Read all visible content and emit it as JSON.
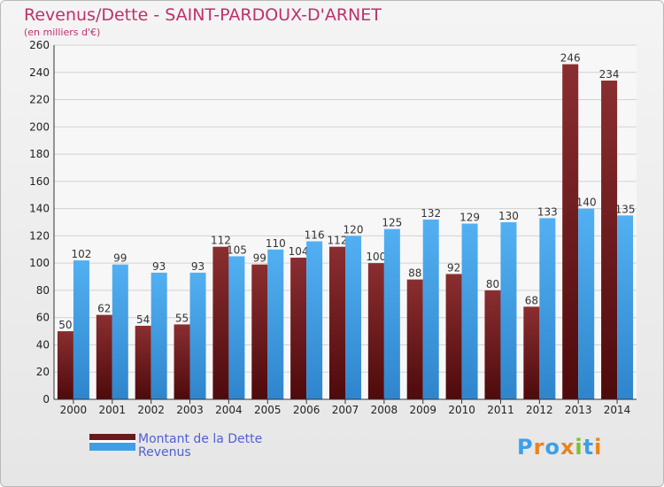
{
  "chart_data": {
    "type": "bar",
    "title": "Revenus/Dette - SAINT-PARDOUX-D'ARNET",
    "subtitle": "(en milliers d'€)",
    "categories": [
      "2000",
      "2001",
      "2002",
      "2003",
      "2004",
      "2005",
      "2006",
      "2007",
      "2008",
      "2009",
      "2010",
      "2011",
      "2012",
      "2013",
      "2014"
    ],
    "series": [
      {
        "name": "Montant de la Dette",
        "color": "#6a1a1c",
        "values": [
          50,
          62,
          54,
          55,
          112,
          99,
          104,
          112,
          100,
          88,
          92,
          80,
          68,
          246,
          234
        ]
      },
      {
        "name": "Revenus",
        "color": "#3e9fe6",
        "values": [
          102,
          99,
          93,
          93,
          105,
          110,
          116,
          120,
          125,
          132,
          129,
          130,
          133,
          140,
          135
        ]
      }
    ],
    "ylim": [
      0,
      260
    ],
    "yticks": [
      0,
      20,
      40,
      60,
      80,
      100,
      120,
      140,
      160,
      180,
      200,
      220,
      240,
      260
    ],
    "grid": true,
    "legend": "bottom-left"
  },
  "logo": {
    "text": "Proxiti"
  }
}
